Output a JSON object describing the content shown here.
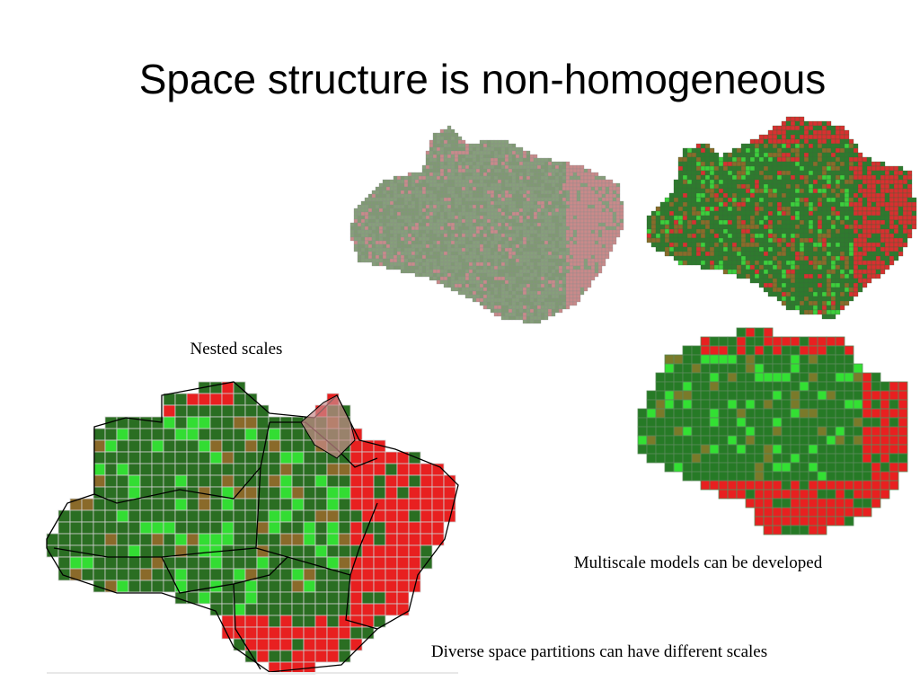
{
  "title": "Space structure is non-homogeneous",
  "captions": [
    "Nested scales",
    "Multiscale models can be developed",
    "Diverse space partitions can have different scales"
  ]
}
